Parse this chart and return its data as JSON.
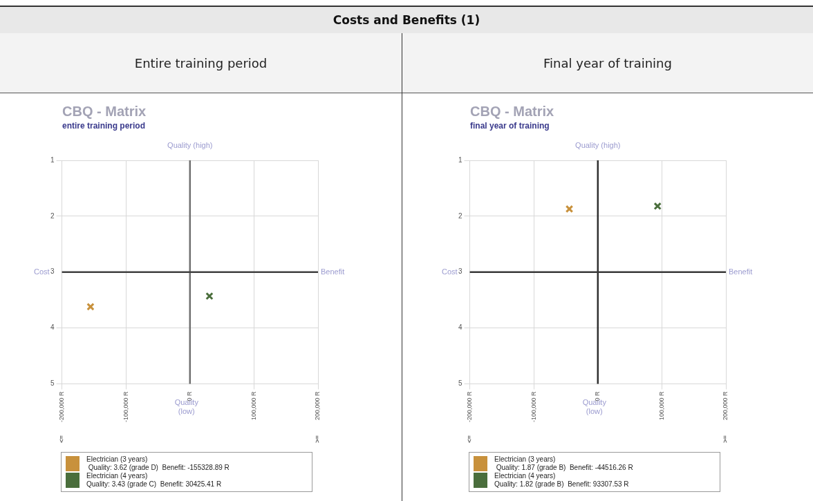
{
  "chart_data": [
    {
      "type": "scatter",
      "title": "CBQ - Matrix",
      "subtitle": "entire training period",
      "annotations": [
        "Costs and Benefits (1)",
        "Entire training period",
        "Quality (high)",
        "Cost",
        "Benefit",
        "Quality (low)",
        "<=",
        ">=",
        " Quality: 3.62 (grade D)  Benefit: -155328.89 R",
        "Quality: 3.43 (grade C)  Benefit: 30425.41 R"
      ],
      "xlim": [
        -200000,
        200000
      ],
      "xticks": [
        {
          "value": -200000,
          "label": "-200,000 R"
        },
        {
          "value": -100000,
          "label": "-100,000 R"
        },
        {
          "value": 0,
          "label": "0 R"
        },
        {
          "value": 100000,
          "label": "100,000 R"
        },
        {
          "value": 200000,
          "label": "200,000 R"
        }
      ],
      "ylim": [
        5,
        1
      ],
      "yticks": [
        1,
        2,
        3,
        4,
        5
      ],
      "grid": true,
      "marker": "cross",
      "legend": "bottom",
      "ref_lines": [
        {
          "axis": "x",
          "value": 0,
          "color": "#707070"
        },
        {
          "axis": "y",
          "value": 3,
          "color": "#404040"
        }
      ],
      "series": [
        {
          "name": "Electrician (3 years)",
          "color": "#c8913c",
          "x": [
            -155328.89
          ],
          "values": [
            3.62
          ]
        },
        {
          "name": "Electrician (4 years)",
          "color": "#4a6e3c",
          "x": [
            30425.41
          ],
          "values": [
            3.43
          ]
        }
      ]
    },
    {
      "type": "scatter",
      "title": "CBQ - Matrix",
      "subtitle": "final year of training",
      "annotations": [
        "Final year of training",
        "Quality (high)",
        "Cost",
        "Benefit",
        "Quality (low)",
        "<=",
        ">=",
        " Quality: 1.87 (grade B)  Benefit: -44516.26 R",
        "Quality: 1.82 (grade B)  Benefit: 93307.53 R"
      ],
      "xlim": [
        -200000,
        200000
      ],
      "xticks": [
        {
          "value": -200000,
          "label": "-200,000 R"
        },
        {
          "value": -100000,
          "label": "-100,000 R"
        },
        {
          "value": 0,
          "label": "0 R"
        },
        {
          "value": 100000,
          "label": "100,000 R"
        },
        {
          "value": 200000,
          "label": "200,000 R"
        }
      ],
      "ylim": [
        5,
        1
      ],
      "yticks": [
        1,
        2,
        3,
        4,
        5
      ],
      "grid": true,
      "marker": "cross",
      "legend": "bottom",
      "ref_lines": [
        {
          "axis": "x",
          "value": 0,
          "color": "#303030"
        },
        {
          "axis": "y",
          "value": 3,
          "color": "#383838"
        }
      ],
      "series": [
        {
          "name": "Electrician (3 years)",
          "color": "#c8913c",
          "x": [
            -44516.26
          ],
          "values": [
            1.87
          ]
        },
        {
          "name": "Electrician (4 years)",
          "color": "#4a6e3c",
          "x": [
            93307.53
          ],
          "values": [
            1.82
          ]
        }
      ]
    }
  ]
}
